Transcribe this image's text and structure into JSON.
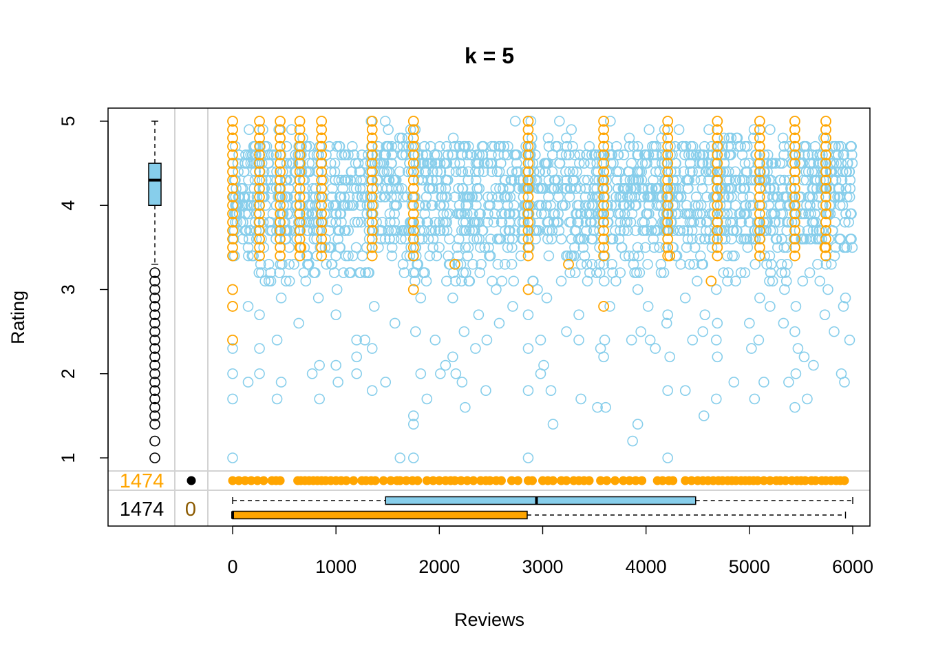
{
  "chart_data": {
    "type": "scatter",
    "title": "k = 5",
    "xlabel": "Reviews",
    "ylabel": "Rating",
    "xlim": [
      -1300,
      6160
    ],
    "ylim": [
      0.2,
      5.15
    ],
    "grid": false,
    "legend": "none",
    "x_ticks": [
      "0",
      "1000",
      "2000",
      "3000",
      "4000",
      "5000",
      "6000"
    ],
    "y_ticks": [
      "1",
      "2",
      "3",
      "4",
      "5"
    ],
    "colors": {
      "cluster_main": "#87CEEB",
      "cluster_highlight": "#FFA500",
      "count_na": "#FFA500",
      "count_zero": "#8B5A00",
      "frame": "#000000",
      "divider": "#D3D3D3"
    },
    "series": [
      {
        "color": "#87CEEB",
        "description_points": "dense band of points across Reviews 0-6000, concentrated at Rating 3.6-4.7, thinning below 3",
        "sparse_points": [
          [
            0,
            1.0
          ],
          [
            1620,
            1.0
          ],
          [
            1750,
            1.0
          ],
          [
            2860,
            1.0
          ],
          [
            4210,
            1.0
          ],
          [
            3870,
            1.2
          ],
          [
            1750,
            1.4
          ],
          [
            3100,
            1.4
          ],
          [
            3920,
            1.4
          ],
          [
            1750,
            1.5
          ],
          [
            4560,
            1.5
          ],
          [
            2250,
            1.6
          ],
          [
            3530,
            1.6
          ],
          [
            3610,
            1.6
          ],
          [
            5440,
            1.6
          ],
          [
            0,
            1.7
          ],
          [
            430,
            1.7
          ],
          [
            840,
            1.7
          ],
          [
            1880,
            1.7
          ],
          [
            3370,
            1.7
          ],
          [
            4680,
            1.7
          ],
          [
            5050,
            1.7
          ],
          [
            5560,
            1.7
          ],
          [
            2450,
            1.8
          ],
          [
            1350,
            1.8
          ],
          [
            2860,
            1.8
          ],
          [
            3080,
            1.8
          ],
          [
            4210,
            1.8
          ],
          [
            4380,
            1.8
          ],
          [
            150,
            1.9
          ],
          [
            470,
            1.9
          ],
          [
            1020,
            1.9
          ],
          [
            1480,
            1.9
          ],
          [
            2220,
            1.9
          ],
          [
            4850,
            1.9
          ],
          [
            5140,
            1.9
          ],
          [
            5380,
            1.9
          ],
          [
            5920,
            1.9
          ],
          [
            0,
            2.0
          ],
          [
            260,
            2.0
          ],
          [
            770,
            2.0
          ],
          [
            1200,
            2.0
          ],
          [
            1820,
            2.0
          ],
          [
            2010,
            2.0
          ],
          [
            2160,
            2.0
          ],
          [
            2980,
            2.0
          ],
          [
            5450,
            2.0
          ],
          [
            5890,
            2.0
          ],
          [
            840,
            2.1
          ],
          [
            1000,
            2.1
          ],
          [
            2060,
            2.1
          ],
          [
            3010,
            2.1
          ],
          [
            5620,
            2.1
          ],
          [
            1200,
            2.2
          ],
          [
            2130,
            2.2
          ],
          [
            3590,
            2.2
          ],
          [
            4230,
            2.2
          ],
          [
            4690,
            2.2
          ],
          [
            5530,
            2.2
          ],
          [
            0,
            2.3
          ],
          [
            260,
            2.3
          ],
          [
            1350,
            2.3
          ],
          [
            2350,
            2.3
          ],
          [
            2860,
            2.3
          ],
          [
            3560,
            2.3
          ],
          [
            4090,
            2.3
          ],
          [
            5020,
            2.3
          ],
          [
            5470,
            2.3
          ],
          [
            1200,
            2.4
          ],
          [
            430,
            2.4
          ],
          [
            1280,
            2.4
          ],
          [
            1960,
            2.4
          ],
          [
            2460,
            2.4
          ],
          [
            2980,
            2.4
          ],
          [
            3350,
            2.4
          ],
          [
            3600,
            2.4
          ],
          [
            3860,
            2.4
          ],
          [
            4040,
            2.4
          ],
          [
            4450,
            2.4
          ],
          [
            4680,
            2.4
          ],
          [
            5090,
            2.4
          ],
          [
            5970,
            2.4
          ],
          [
            1770,
            2.5
          ],
          [
            2240,
            2.5
          ],
          [
            3230,
            2.5
          ],
          [
            3950,
            2.5
          ],
          [
            4550,
            2.5
          ],
          [
            5440,
            2.5
          ],
          [
            5820,
            2.5
          ],
          [
            1570,
            2.6
          ],
          [
            640,
            2.6
          ],
          [
            2580,
            2.6
          ],
          [
            4200,
            2.6
          ],
          [
            4690,
            2.6
          ],
          [
            5000,
            2.6
          ],
          [
            5330,
            2.6
          ],
          [
            4210,
            2.7
          ],
          [
            260,
            2.7
          ],
          [
            1000,
            2.7
          ],
          [
            2380,
            2.7
          ],
          [
            2860,
            2.7
          ],
          [
            3350,
            2.7
          ],
          [
            4570,
            2.7
          ],
          [
            5730,
            2.7
          ],
          [
            5200,
            2.8
          ],
          [
            150,
            2.8
          ],
          [
            1370,
            2.8
          ],
          [
            2710,
            2.8
          ],
          [
            3650,
            2.8
          ],
          [
            4020,
            2.8
          ],
          [
            5450,
            2.8
          ],
          [
            5910,
            2.8
          ],
          [
            470,
            2.9
          ],
          [
            830,
            2.9
          ],
          [
            1820,
            2.9
          ],
          [
            2130,
            2.9
          ],
          [
            3040,
            2.9
          ],
          [
            4380,
            2.9
          ],
          [
            5100,
            2.9
          ],
          [
            5930,
            2.9
          ],
          [
            2550,
            3.0
          ],
          [
            1010,
            3.0
          ],
          [
            2950,
            3.0
          ],
          [
            3920,
            3.0
          ],
          [
            4680,
            3.0
          ],
          [
            5340,
            3.0
          ],
          [
            5760,
            3.0
          ]
        ]
      },
      {
        "color": "#FFA500",
        "description_points": "vertical columns of points at a few review counts plus scattered points, Rating 2.4-5.0",
        "columns_x": [
          0,
          260,
          460,
          650,
          860,
          1350,
          1750,
          2860,
          3590,
          4210,
          4690,
          5100,
          5440,
          5740
        ],
        "column_y_range": [
          3.4,
          5.0
        ],
        "extra_points": [
          [
            0,
            2.4
          ],
          [
            0,
            2.8
          ],
          [
            0,
            3.0
          ],
          [
            1750,
            3.0
          ],
          [
            2860,
            3.0
          ],
          [
            3590,
            2.8
          ],
          [
            2150,
            3.3
          ],
          [
            3250,
            3.3
          ],
          [
            4630,
            3.1
          ],
          [
            4230,
            3.4
          ],
          [
            5100,
            3.4
          ],
          [
            260,
            3.6
          ],
          [
            660,
            3.5
          ],
          [
            3590,
            3.6
          ],
          [
            5730,
            3.5
          ]
        ]
      }
    ],
    "left_margin_boxplot": {
      "variable": "Rating",
      "color": "#87CEEB",
      "min_whisker": 3.3,
      "q1": 4.0,
      "median": 4.3,
      "q3": 4.5,
      "max_whisker": 5.0,
      "outliers": [
        1.0,
        1.2,
        1.4,
        1.5,
        1.6,
        1.7,
        1.8,
        1.9,
        2.0,
        2.1,
        2.2,
        2.3,
        2.4,
        2.5,
        2.6,
        2.7,
        2.8,
        2.9,
        3.0,
        3.1,
        3.2
      ]
    },
    "bottom_margin_boxplots": [
      {
        "color": "#87CEEB",
        "min": 0,
        "q1": 1480,
        "median": 2940,
        "q3": 4480,
        "max": 6000
      },
      {
        "color": "#FFA500",
        "min": 0,
        "q1": 0,
        "median": 0,
        "q3": 2850,
        "max": 5930
      }
    ],
    "missing_rating_row": {
      "count_label": "1474",
      "reviews_x": [
        0,
        60,
        120,
        180,
        240,
        300,
        380,
        420,
        460,
        630,
        660,
        700,
        740,
        780,
        820,
        860,
        900,
        950,
        1000,
        1050,
        1100,
        1170,
        1250,
        1290,
        1340,
        1380,
        1460,
        1530,
        1590,
        1620,
        1680,
        1740,
        1790,
        1880,
        1940,
        2000,
        2060,
        2110,
        2150,
        2210,
        2270,
        2330,
        2400,
        2450,
        2490,
        2550,
        2600,
        2700,
        2760,
        2860,
        2900,
        3000,
        3050,
        3100,
        3180,
        3230,
        3300,
        3350,
        3400,
        3450,
        3560,
        3620,
        3700,
        3780,
        3840,
        3900,
        3960,
        4110,
        4160,
        4220,
        4260,
        4380,
        4440,
        4500,
        4550,
        4600,
        4650,
        4700,
        4740,
        4790,
        4830,
        4870,
        4920,
        4960,
        5000,
        5040,
        5080,
        5140,
        5200,
        5260,
        5300,
        5350,
        5410,
        5460,
        5500,
        5540,
        5600,
        5640,
        5700,
        5740,
        5790,
        5840,
        5880,
        5920
      ]
    },
    "margin_counts": {
      "missing_rating": "1474",
      "missing_reviews": "1474",
      "missing_both": "0"
    }
  }
}
